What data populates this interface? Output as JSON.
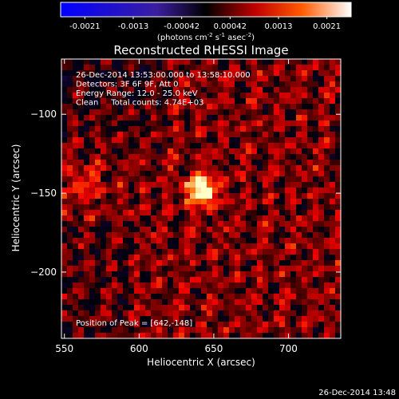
{
  "chart_data": {
    "type": "heatmap",
    "title": "Reconstructed RHESSI Image",
    "xlabel": "Heliocentric X (arcsec)",
    "ylabel": "Heliocentric Y (arcsec)",
    "xlim": [
      548,
      735
    ],
    "ylim": [
      -242,
      -65
    ],
    "xticks": [
      550,
      600,
      650,
      700
    ],
    "yticks": [
      -100,
      -150,
      -200
    ],
    "colorbar": {
      "ticks": [
        "-0.0021",
        "-0.0013",
        "-0.00042",
        "0.00042",
        "0.0013",
        "0.0021"
      ],
      "unit_prefix": "(photons cm",
      "unit_sup1": "-2",
      "unit_mid": " s",
      "unit_sup2": "-1",
      "unit_mid2": " asec",
      "unit_sup3": "-2",
      "unit_suffix": ")",
      "range": [
        -0.0021,
        0.0021
      ]
    },
    "annotations": [
      "26-Dec-2014 13:53:00.000 to 13:58:10.000",
      "Detectors: 3F 6F 9F, Att 0",
      "Energy Range: 12.0 - 25.0 keV",
      "Clean     Total counts: 4.74E+03"
    ],
    "peak_label": "Position of Peak = [642,-148]",
    "peak": [
      642,
      -148
    ]
  },
  "footer_timestamp": "26-Dec-2014 13:48"
}
